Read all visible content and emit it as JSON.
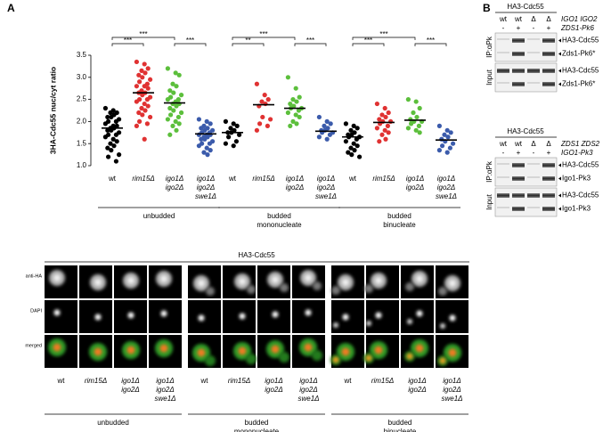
{
  "panel_labels": {
    "a": "A",
    "b": "B"
  },
  "chart_data": {
    "type": "strip",
    "ylabel": "3HA-Cdc55 nuc/cyt ratio",
    "ylim": [
      1.0,
      3.5
    ],
    "yticks": [
      {
        "value": 1,
        "label": "1.0"
      },
      1.5,
      {
        "value": 2,
        "label": "2.0"
      },
      2.5,
      {
        "value": 3,
        "label": "3.0"
      },
      3.5
    ],
    "groups": [
      {
        "label": [
          "unbudded"
        ],
        "strips": [
          {
            "category": [
              "wt"
            ],
            "color": "#000000",
            "values": [
              2.3,
              2.25,
              2.2,
              2.2,
              2.15,
              2.1,
              2.1,
              2.05,
              2.0,
              2.0,
              1.95,
              1.9,
              1.9,
              1.85,
              1.85,
              1.8,
              1.8,
              1.75,
              1.7,
              1.7,
              1.65,
              1.6,
              1.55,
              1.5,
              1.45,
              1.4,
              1.35,
              1.25,
              1.2,
              1.1
            ],
            "median": 1.85
          },
          {
            "category": [
              "rim15Δ"
            ],
            "color": "#e03232",
            "values": [
              3.35,
              3.3,
              3.2,
              3.15,
              3.1,
              3.05,
              3.0,
              2.95,
              2.9,
              2.85,
              2.8,
              2.8,
              2.75,
              2.7,
              2.65,
              2.65,
              2.6,
              2.55,
              2.5,
              2.5,
              2.45,
              2.4,
              2.35,
              2.3,
              2.25,
              2.2,
              2.15,
              2.1,
              2.0,
              1.95,
              1.9,
              1.6
            ],
            "median": 2.65
          },
          {
            "category": [
              "igo1Δ",
              "igo2Δ"
            ],
            "color": "#5cbf3c",
            "values": [
              3.2,
              3.1,
              3.05,
              2.85,
              2.8,
              2.7,
              2.65,
              2.6,
              2.55,
              2.5,
              2.5,
              2.45,
              2.4,
              2.4,
              2.35,
              2.3,
              2.25,
              2.2,
              2.15,
              2.1,
              2.05,
              2.0,
              1.95,
              1.9,
              1.8,
              1.7
            ],
            "median": 2.42
          },
          {
            "category": [
              "igo1Δ",
              "igo2Δ",
              "swe1Δ"
            ],
            "color": "#3b5bab",
            "values": [
              2.05,
              2.0,
              1.95,
              1.9,
              1.85,
              1.85,
              1.8,
              1.8,
              1.75,
              1.75,
              1.7,
              1.7,
              1.7,
              1.65,
              1.65,
              1.6,
              1.6,
              1.55,
              1.5,
              1.5,
              1.45,
              1.4,
              1.35,
              1.3,
              1.25
            ],
            "median": 1.72
          }
        ],
        "significance": [
          {
            "label": "***",
            "pair": [
              0,
              1
            ]
          },
          {
            "label": "***",
            "pair": [
              0,
              2
            ]
          },
          {
            "label": "***",
            "pair": [
              2,
              3
            ]
          }
        ]
      },
      {
        "label": [
          "budded",
          "mononucleate"
        ],
        "strips": [
          {
            "category": [
              "wt"
            ],
            "color": "#000000",
            "values": [
              2.0,
              1.95,
              1.9,
              1.85,
              1.8,
              1.75,
              1.75,
              1.7,
              1.65,
              1.55,
              1.5,
              1.45
            ],
            "median": 1.75
          },
          {
            "category": [
              "rim15Δ"
            ],
            "color": "#e03232",
            "values": [
              2.85,
              2.6,
              2.5,
              2.45,
              2.4,
              2.35,
              2.1,
              2.05,
              1.95,
              1.9,
              1.8
            ],
            "median": 2.38
          },
          {
            "category": [
              "igo1Δ",
              "igo2Δ"
            ],
            "color": "#5cbf3c",
            "values": [
              3.0,
              2.75,
              2.55,
              2.5,
              2.45,
              2.4,
              2.35,
              2.3,
              2.3,
              2.25,
              2.2,
              2.15,
              2.1,
              2.0,
              1.95,
              1.9
            ],
            "median": 2.3
          },
          {
            "category": [
              "igo1Δ",
              "igo2Δ",
              "swe1Δ"
            ],
            "color": "#3b5bab",
            "values": [
              2.1,
              2.0,
              1.95,
              1.9,
              1.85,
              1.8,
              1.8,
              1.75,
              1.75,
              1.7,
              1.65,
              1.6
            ],
            "median": 1.78
          }
        ],
        "significance": [
          {
            "label": "**",
            "pair": [
              0,
              1
            ]
          },
          {
            "label": "***",
            "pair": [
              0,
              2
            ]
          },
          {
            "label": "***",
            "pair": [
              2,
              3
            ]
          }
        ]
      },
      {
        "label": [
          "budded",
          "binucleate"
        ],
        "strips": [
          {
            "category": [
              "wt"
            ],
            "color": "#000000",
            "values": [
              1.95,
              1.9,
              1.85,
              1.8,
              1.75,
              1.7,
              1.7,
              1.65,
              1.65,
              1.6,
              1.55,
              1.5,
              1.45,
              1.4,
              1.35,
              1.3,
              1.25,
              1.2
            ],
            "median": 1.65
          },
          {
            "category": [
              "rim15Δ"
            ],
            "color": "#e03232",
            "values": [
              2.4,
              2.3,
              2.2,
              2.15,
              2.1,
              2.05,
              2.0,
              2.0,
              1.95,
              1.9,
              1.85,
              1.8,
              1.75,
              1.7,
              1.6,
              1.55
            ],
            "median": 1.98
          },
          {
            "category": [
              "igo1Δ",
              "igo2Δ"
            ],
            "color": "#5cbf3c",
            "values": [
              2.5,
              2.45,
              2.3,
              2.2,
              2.1,
              2.05,
              2.0,
              2.0,
              1.95,
              1.9,
              1.85,
              1.8,
              1.75
            ],
            "median": 2.03
          },
          {
            "category": [
              "igo1Δ",
              "igo2Δ",
              "swe1Δ"
            ],
            "color": "#3b5bab",
            "values": [
              1.9,
              1.8,
              1.75,
              1.7,
              1.65,
              1.6,
              1.55,
              1.5,
              1.45,
              1.4,
              1.35,
              1.3
            ],
            "median": 1.58
          }
        ],
        "significance": [
          {
            "label": "***",
            "pair": [
              0,
              1
            ]
          },
          {
            "label": "***",
            "pair": [
              0,
              2
            ]
          },
          {
            "label": "***",
            "pair": [
              2,
              3
            ]
          }
        ]
      }
    ]
  },
  "microscopy": {
    "title": "HA3-Cdc55",
    "rows": [
      "anti-HA",
      "DAPI",
      "merged"
    ],
    "groups": [
      {
        "label": [
          "unbudded"
        ],
        "columns": [
          [
            "wt"
          ],
          [
            "rim15Δ"
          ],
          [
            "igo1Δ",
            "igo2Δ"
          ],
          [
            "igo1Δ",
            "igo2Δ",
            "swe1Δ"
          ]
        ]
      },
      {
        "label": [
          "budded",
          "mononucleate"
        ],
        "columns": [
          [
            "wt"
          ],
          [
            "rim15Δ"
          ],
          [
            "igo1Δ",
            "igo2Δ"
          ],
          [
            "igo1Δ",
            "igo2Δ",
            "swe1Δ"
          ]
        ]
      },
      {
        "label": [
          "budded",
          "binucleate"
        ],
        "columns": [
          [
            "wt"
          ],
          [
            "rim15Δ"
          ],
          [
            "igo1Δ",
            "igo2Δ"
          ],
          [
            "igo1Δ",
            "igo2Δ",
            "swe1Δ"
          ]
        ]
      }
    ]
  },
  "blots": [
    {
      "title": "HA3-Cdc55",
      "strains": [
        "wt",
        "wt",
        "Δ",
        "Δ"
      ],
      "strain_genes": "IGO1 IGO2",
      "tags": [
        "-",
        "+",
        "-",
        "+"
      ],
      "tag_name": "ZDS1-Pk6",
      "sections": [
        {
          "name": "IP:αPk",
          "bands": [
            "HA3-Cdc55",
            "Zds1-Pk6*"
          ]
        },
        {
          "name": "Input",
          "bands": [
            "HA3-Cdc55",
            "Zds1-Pk6*"
          ]
        }
      ]
    },
    {
      "title": "HA3-Cdc55",
      "strains": [
        "wt",
        "wt",
        "Δ",
        "Δ"
      ],
      "strain_genes": "ZDS1 ZDS2",
      "tags": [
        "-",
        "+",
        "-",
        "+"
      ],
      "tag_name": "IGO1-Pk3",
      "sections": [
        {
          "name": "IP:αPk",
          "bands": [
            "HA3-Cdc55",
            "Igo1-Pk3"
          ]
        },
        {
          "name": "Input",
          "bands": [
            "HA3-Cdc55",
            "Igo1-Pk3"
          ]
        }
      ]
    }
  ]
}
